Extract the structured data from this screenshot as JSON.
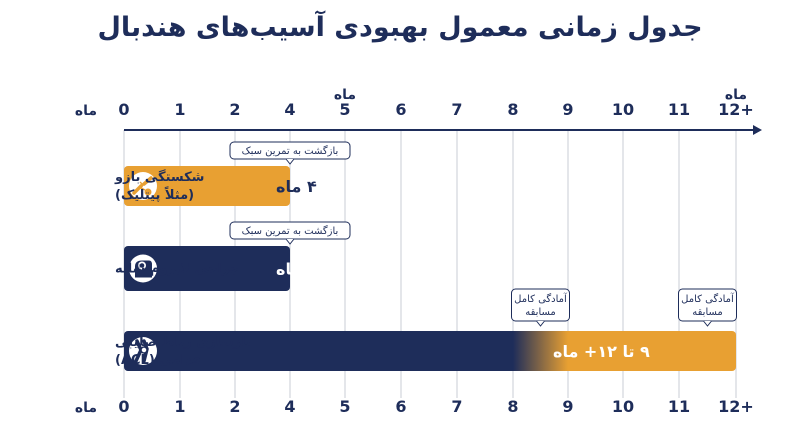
{
  "title": "جدول زمانی معمول بهبودی آسیب‌های هندبال",
  "colors": {
    "navy": "#1e2d5a",
    "orange": "#e8a032",
    "grid": "#c9cdd6"
  },
  "chart_data": {
    "type": "bar",
    "orientation": "horizontal",
    "x_ticks": [
      "0",
      "1",
      "2",
      "4",
      "5",
      "6",
      "7",
      "8",
      "9",
      "10",
      "11",
      "12+"
    ],
    "x_tick_values": [
      0,
      1,
      2,
      4,
      5,
      6,
      7,
      8,
      9,
      10,
      11,
      12
    ],
    "x_unit_label": "ماه",
    "xlim": [
      0,
      12
    ],
    "grid": true,
    "rows": [
      {
        "name": "شکستگی بازو (مثلاً پیتلیک)",
        "label_lines": [
          "شکستگی بازو",
          "(مثلاً پیتلیک)"
        ],
        "icon": "broken-arm-icon",
        "start": 0,
        "end": 4,
        "color": "#e8a032",
        "value_label": "۴ ماه",
        "callouts": [
          {
            "text": "بازگشت به تمرین سبک",
            "at": 4
          }
        ]
      },
      {
        "name": "جراحی لابروم شانه",
        "label_lines": [
          "جراحی لابروم شانه"
        ],
        "icon": "shoulder-icon",
        "start": 0,
        "end": 4,
        "color": "#1e2d5a",
        "value_label": "۴ ماه",
        "callouts": [
          {
            "text": "بازگشت به تمرین سبک",
            "at": 4
          }
        ]
      },
      {
        "name": "بازسازی رباط صلیبی قدامی (ACL)",
        "label_lines": [
          "بازسازی رباط صلیبی",
          "قدامی (ACL)"
        ],
        "icon": "knee-icon",
        "start": 0,
        "end": 12,
        "color": "#1e2d5a",
        "gradient_to": "#e8a032",
        "gradient_from_value": 8,
        "gradient_to_value": 9,
        "value_label": "۹ تا ۱۲+ ماه",
        "callouts": [
          {
            "text_lines": [
              "آمادگی کامل",
              "مسابقه"
            ],
            "at": 8.5
          },
          {
            "text_lines": [
              "آمادگی کامل",
              "مسابقه"
            ],
            "at": 11.5
          }
        ]
      }
    ]
  }
}
